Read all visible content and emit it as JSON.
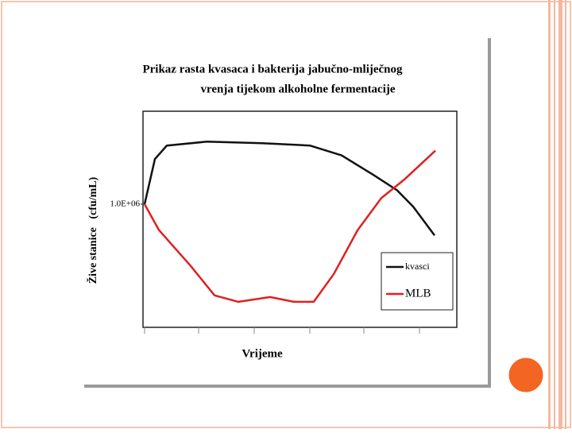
{
  "chart_data": {
    "type": "line",
    "title": [
      "Prikaz rasta kvasaca i bakterija jabučno-mliječnog",
      "vrenja tijekom alkoholne fermentacije"
    ],
    "x_label": "Vrijeme",
    "y_label": "Žive stanice   (cfu/mL)",
    "log_y": true,
    "xlim": [
      0,
      10
    ],
    "ylim": [
      1000,
      100000000
    ],
    "yticks": [
      {
        "value": 1000000,
        "label": "1.0E+06"
      }
    ],
    "legend": "lower right",
    "series": [
      {
        "name": "kvasci",
        "color": "#111111",
        "x": [
          0.05,
          0.38,
          0.76,
          2.03,
          3.8,
          5.32,
          6.33,
          7.34,
          8.1,
          8.61,
          9.29
        ],
        "values": [
          1000000,
          13000000,
          28000000,
          35000000,
          32000000,
          28000000,
          16000000,
          5300000,
          2200000,
          870000,
          170000
        ]
      },
      {
        "name": "MLB",
        "color": "#e02020",
        "x": [
          0.05,
          0.51,
          1.52,
          2.28,
          3.04,
          4.05,
          4.81,
          5.44,
          6.08,
          6.84,
          7.59,
          8.35,
          9.32
        ],
        "values": [
          1000000,
          230000,
          30000,
          5600,
          3900,
          5100,
          3900,
          3900,
          19000,
          230000,
          1400000,
          4200000,
          21000000
        ]
      }
    ]
  }
}
